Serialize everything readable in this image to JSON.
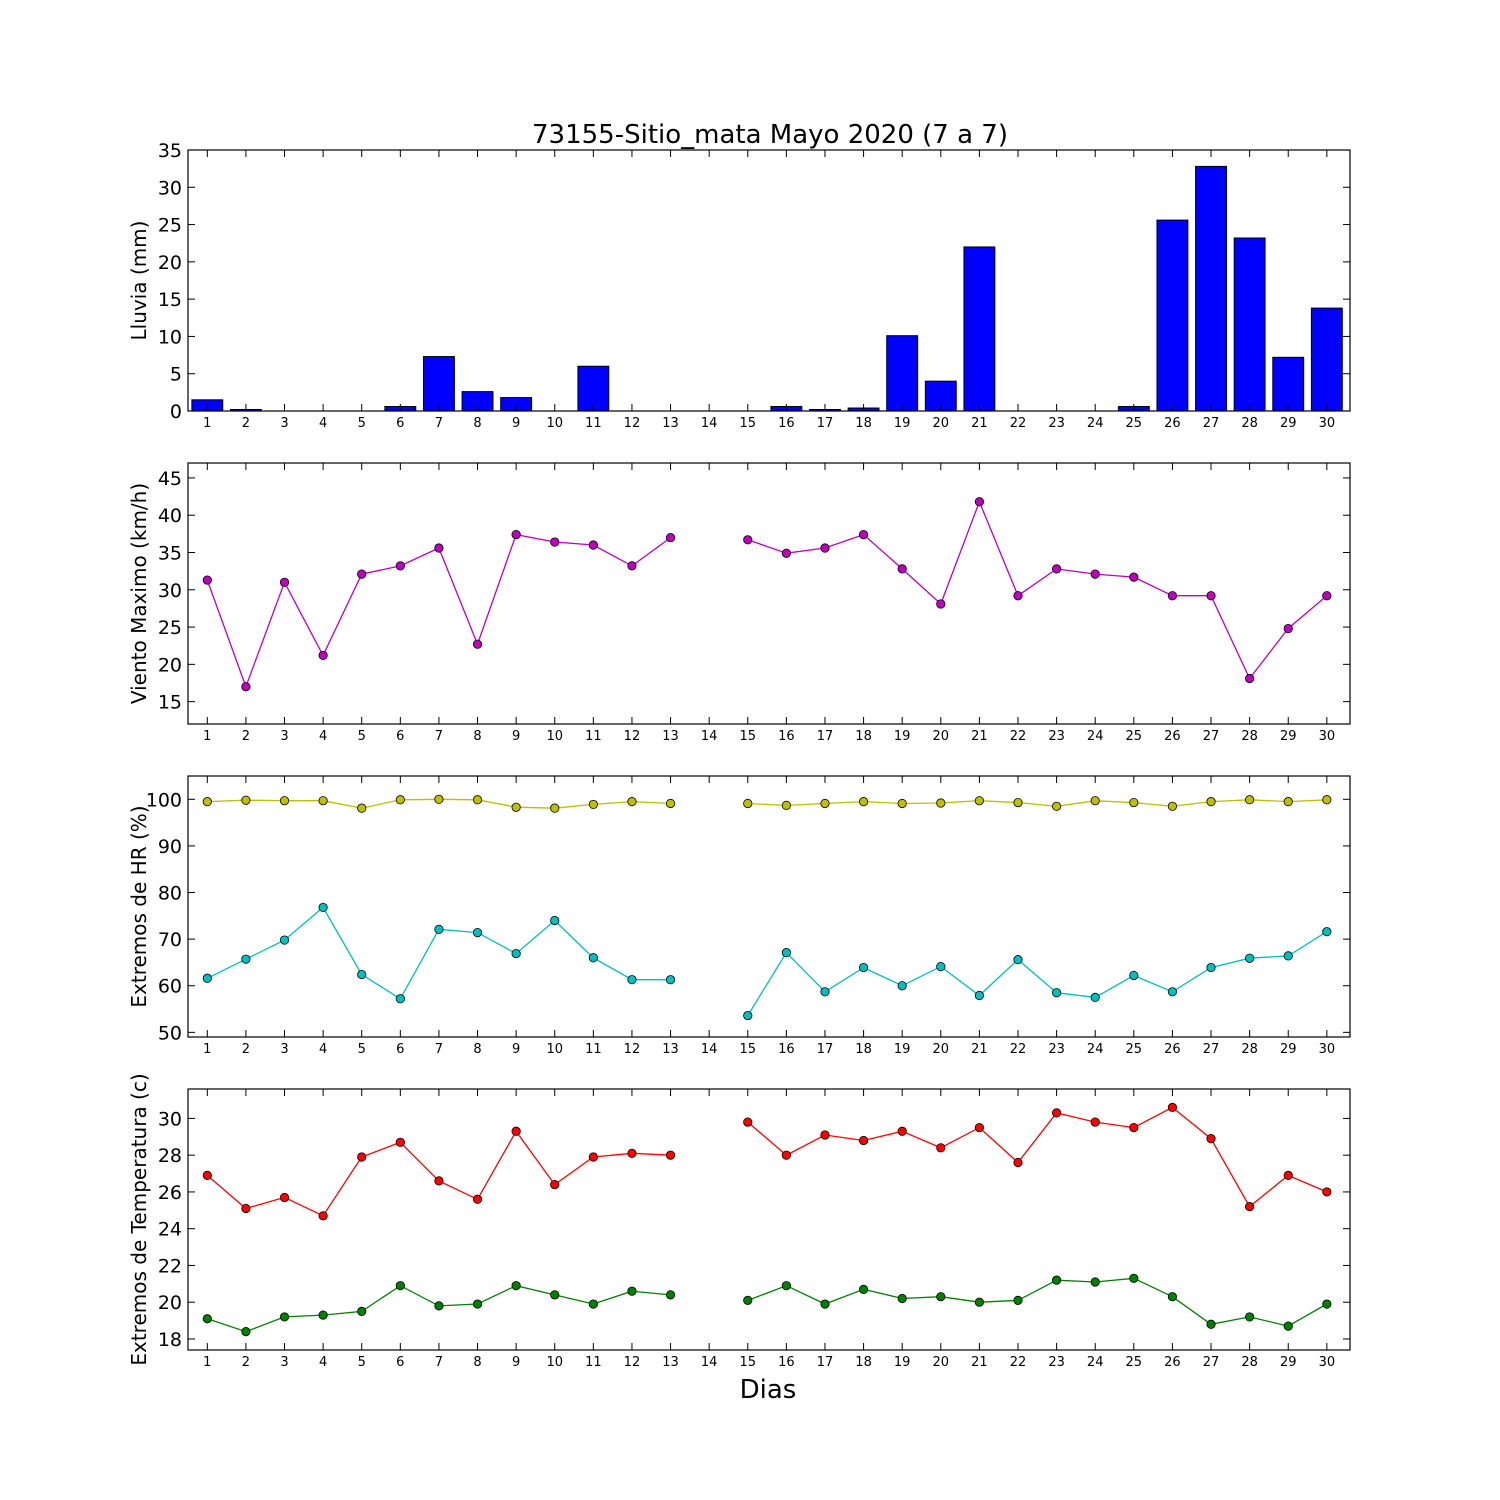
{
  "figure": {
    "title": "73155-Sitio_mata Mayo 2020  (7 a 7)",
    "xlabel": "Dias"
  },
  "chart_data": [
    {
      "type": "bar",
      "ylabel": "Lluvia (mm)",
      "ylim": [
        0,
        35
      ],
      "yticks": [
        0,
        5,
        10,
        15,
        20,
        25,
        30,
        35
      ],
      "categories": [
        "1",
        "2",
        "3",
        "4",
        "5",
        "6",
        "7",
        "8",
        "9",
        "10",
        "11",
        "12",
        "13",
        "14",
        "15",
        "16",
        "17",
        "18",
        "19",
        "20",
        "21",
        "22",
        "23",
        "24",
        "25",
        "26",
        "27",
        "28",
        "29",
        "30"
      ],
      "values": [
        1.5,
        0.2,
        0,
        0,
        0,
        0.6,
        7.3,
        2.6,
        1.8,
        0,
        6.0,
        0,
        0,
        0,
        0,
        0.6,
        0.2,
        0.4,
        10.1,
        4.0,
        22.0,
        0,
        0,
        0,
        0.6,
        25.6,
        32.8,
        23.2,
        7.2,
        13.8
      ],
      "color": "#0000ff"
    },
    {
      "type": "line",
      "ylabel": "Viento Maximo (km/h)",
      "ylim": [
        12,
        47
      ],
      "yticks": [
        15,
        20,
        25,
        30,
        35,
        40,
        45
      ],
      "x": [
        1,
        2,
        3,
        4,
        5,
        6,
        7,
        8,
        9,
        10,
        11,
        12,
        13,
        14,
        15,
        16,
        17,
        18,
        19,
        20,
        21,
        22,
        23,
        24,
        25,
        26,
        27,
        28,
        29,
        30
      ],
      "series": [
        {
          "color": "#bf00bf",
          "values": [
            31.3,
            17.0,
            31.0,
            21.2,
            32.1,
            33.2,
            35.6,
            22.7,
            37.4,
            36.4,
            36.0,
            33.2,
            37.0,
            null,
            36.7,
            34.9,
            35.6,
            37.4,
            32.8,
            28.1,
            41.8,
            29.2,
            32.8,
            32.1,
            31.7,
            29.2,
            29.2,
            18.1,
            24.8,
            29.2
          ]
        }
      ]
    },
    {
      "type": "line",
      "ylabel": "Extremos de HR (%)",
      "ylim": [
        49,
        105
      ],
      "yticks": [
        50,
        60,
        70,
        80,
        90,
        100
      ],
      "x": [
        1,
        2,
        3,
        4,
        5,
        6,
        7,
        8,
        9,
        10,
        11,
        12,
        13,
        14,
        15,
        16,
        17,
        18,
        19,
        20,
        21,
        22,
        23,
        24,
        25,
        26,
        27,
        28,
        29,
        30
      ],
      "series": [
        {
          "color": "#bfbf00",
          "values": [
            99.5,
            99.8,
            99.7,
            99.7,
            98.1,
            99.9,
            100.0,
            99.9,
            98.3,
            98.1,
            98.9,
            99.5,
            99.1,
            null,
            99.1,
            98.7,
            99.1,
            99.5,
            99.1,
            99.2,
            99.7,
            99.3,
            98.5,
            99.7,
            99.3,
            98.5,
            99.5,
            99.9,
            99.5,
            99.9
          ]
        },
        {
          "color": "#00bfbf",
          "values": [
            61.6,
            65.7,
            69.8,
            76.8,
            62.4,
            57.2,
            72.1,
            71.4,
            66.9,
            74.0,
            66.0,
            61.3,
            61.3,
            null,
            53.6,
            67.1,
            58.7,
            63.9,
            60.0,
            64.1,
            57.9,
            65.6,
            58.5,
            57.5,
            62.2,
            58.7,
            63.9,
            65.9,
            66.4,
            71.6
          ]
        }
      ]
    },
    {
      "type": "line",
      "ylabel": "Extremos de Temperatura (c)",
      "ylim": [
        17.4,
        31.6
      ],
      "yticks": [
        18,
        20,
        22,
        24,
        26,
        28,
        30
      ],
      "x": [
        1,
        2,
        3,
        4,
        5,
        6,
        7,
        8,
        9,
        10,
        11,
        12,
        13,
        14,
        15,
        16,
        17,
        18,
        19,
        20,
        21,
        22,
        23,
        24,
        25,
        26,
        27,
        28,
        29,
        30
      ],
      "series": [
        {
          "color": "#ff0000",
          "values": [
            26.9,
            25.1,
            25.7,
            24.7,
            27.9,
            28.7,
            26.6,
            25.6,
            29.3,
            26.4,
            27.9,
            28.1,
            28.0,
            null,
            29.8,
            28.0,
            29.1,
            28.8,
            29.3,
            28.4,
            29.5,
            27.6,
            30.3,
            29.8,
            29.5,
            30.6,
            28.9,
            25.2,
            26.9,
            26.0
          ]
        },
        {
          "color": "#008000",
          "values": [
            19.1,
            18.4,
            19.2,
            19.3,
            19.5,
            20.9,
            19.8,
            19.9,
            20.9,
            20.4,
            19.9,
            20.6,
            20.4,
            null,
            20.1,
            20.9,
            19.9,
            20.7,
            20.2,
            20.3,
            20.0,
            20.1,
            21.2,
            21.1,
            21.3,
            20.3,
            18.8,
            19.2,
            18.7,
            19.9
          ]
        }
      ]
    }
  ]
}
